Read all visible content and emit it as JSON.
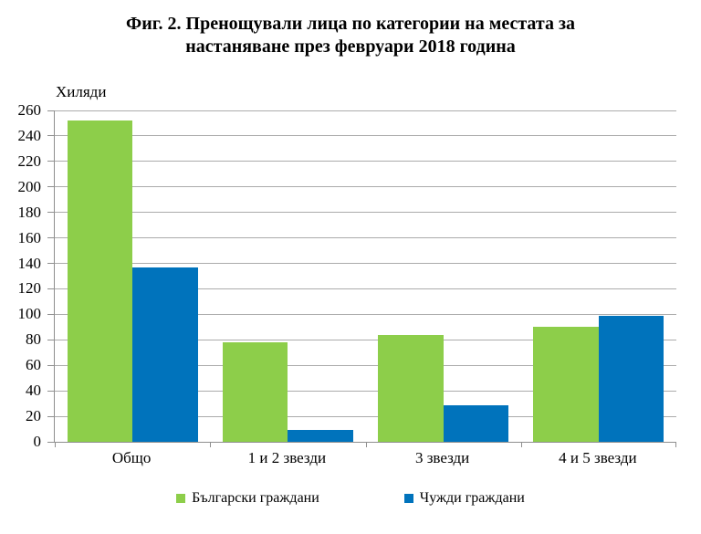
{
  "title": {
    "line1": "Фиг. 2. Пренощували лица по категории на местата за",
    "line2": "настаняване през февруари 2018 година"
  },
  "chart_data": {
    "type": "bar",
    "title": "Фиг. 2. Пренощували лица по категории на местата за настаняване през февруари 2018 година",
    "xlabel": "",
    "ylabel": "Хиляди",
    "categories": [
      "Общо",
      "1 и 2 звезди",
      "3 звезди",
      "4 и 5 звезди"
    ],
    "series": [
      {
        "name": "Български граждани",
        "color": "#8DCE4A",
        "values": [
          252,
          78,
          84,
          90
        ]
      },
      {
        "name": "Чужди граждани",
        "color": "#0073BC",
        "values": [
          137,
          9,
          29,
          99
        ]
      }
    ],
    "ylim": [
      0,
      260
    ],
    "ytick_step": 20,
    "yticks": [
      0,
      20,
      40,
      60,
      80,
      100,
      120,
      140,
      160,
      180,
      200,
      220,
      240,
      260
    ],
    "grid": true,
    "legend_position": "bottom"
  },
  "colors": {
    "bulgarian_series": "#8DCE4A",
    "foreign_series": "#0073BC",
    "gridline": "#ABABAB",
    "axis": "#8F8F8F",
    "text": "#000000",
    "background": "#FFFFFF"
  }
}
